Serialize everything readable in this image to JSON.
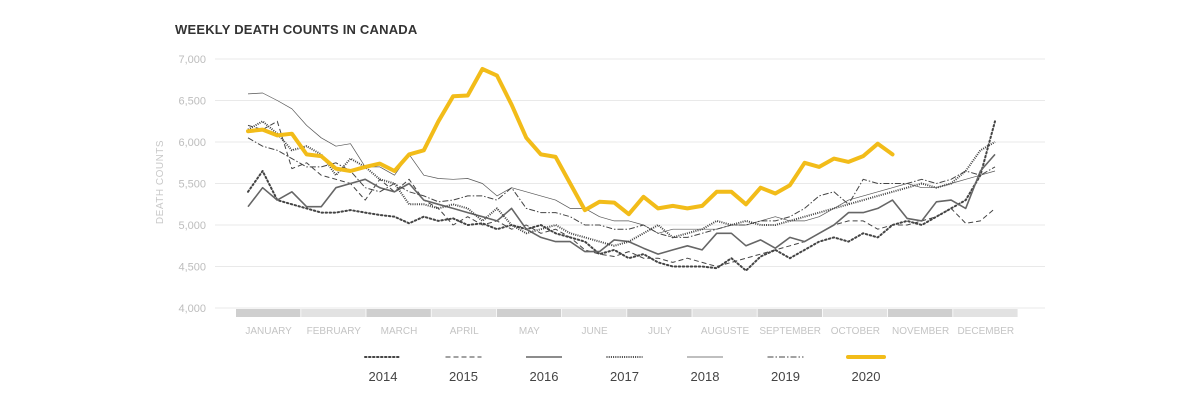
{
  "chart_data": {
    "type": "line",
    "title": "WEEKLY DEATH COUNTS IN CANADA",
    "ylabel": "DEATH COUNTS",
    "xlabel": "",
    "ylim": [
      4000,
      7000
    ],
    "yticks": [
      "4,000",
      "4,500",
      "5,000",
      "5,500",
      "6,000",
      "6,500",
      "7,000"
    ],
    "ytick_values": [
      4000,
      4500,
      5000,
      5500,
      6000,
      6500,
      7000
    ],
    "months": [
      "JANUARY",
      "FEBRUARY",
      "MARCH",
      "APRIL",
      "MAY",
      "JUNE",
      "JULY",
      "AUGUSTE",
      "SEPTEMBER",
      "OCTOBER",
      "NOVEMBER",
      "DECEMBER"
    ],
    "weeks": 52,
    "grid": true,
    "legend_position": "bottom",
    "series": [
      {
        "name": "2014",
        "style": "dotted",
        "color": "#444444",
        "values": [
          5400,
          5650,
          5300,
          5250,
          5200,
          5150,
          5150,
          5180,
          5150,
          5120,
          5100,
          5020,
          5100,
          5050,
          5080,
          5000,
          5020,
          4950,
          5000,
          4950,
          5000,
          4900,
          4850,
          4800,
          4650,
          4700,
          4600,
          4650,
          4550,
          4500,
          4500,
          4500,
          4480,
          4600,
          4450,
          4620,
          4700,
          4600,
          4700,
          4800,
          4850,
          4800,
          4900,
          4850,
          5000,
          5050,
          5000,
          5100,
          5200,
          5300,
          5600,
          6250
        ]
      },
      {
        "name": "2015",
        "style": "dashed",
        "color": "#444444",
        "values": [
          6200,
          6150,
          6250,
          5680,
          5750,
          5600,
          5550,
          5500,
          5300,
          5550,
          5400,
          5550,
          5300,
          5200,
          5000,
          5100,
          5000,
          5050,
          4950,
          5000,
          4900,
          4950,
          4850,
          4700,
          4650,
          4620,
          4680,
          4600,
          4600,
          4550,
          4600,
          4550,
          4500,
          4550,
          4600,
          4650,
          4700,
          4750,
          4800,
          4900,
          5000,
          5050,
          5050,
          4950,
          5000,
          5000,
          5050,
          5100,
          5200,
          5020,
          5050,
          5200
        ]
      },
      {
        "name": "2016",
        "style": "solid-thick",
        "color": "#666666",
        "values": [
          5220,
          5450,
          5300,
          5400,
          5220,
          5220,
          5450,
          5500,
          5550,
          5450,
          5400,
          5500,
          5300,
          5250,
          5200,
          5150,
          5100,
          5050,
          5200,
          4950,
          4850,
          4800,
          4800,
          4680,
          4680,
          4820,
          4800,
          4720,
          4650,
          4700,
          4750,
          4700,
          4900,
          4900,
          4750,
          4820,
          4720,
          4850,
          4800,
          4900,
          5000,
          5150,
          5150,
          5200,
          5300,
          5080,
          5050,
          5280,
          5300,
          5200,
          5650,
          5850
        ]
      },
      {
        "name": "2017",
        "style": "dense-dotted",
        "color": "#444444",
        "values": [
          6150,
          6250,
          6100,
          5900,
          5950,
          5850,
          5600,
          5800,
          5700,
          5550,
          5500,
          5250,
          5250,
          5200,
          5250,
          5200,
          5050,
          5200,
          5000,
          4900,
          4950,
          5000,
          4900,
          4850,
          4800,
          4750,
          4800,
          4900,
          5000,
          4850,
          4900,
          4950,
          5050,
          5000,
          5050,
          5000,
          5000,
          5050,
          5100,
          5150,
          5200,
          5250,
          5300,
          5350,
          5400,
          5450,
          5500,
          5450,
          5500,
          5650,
          5900,
          6000
        ]
      },
      {
        "name": "2018",
        "style": "solid-thin",
        "color": "#555555",
        "values": [
          6580,
          6590,
          6500,
          6400,
          6200,
          6050,
          5950,
          5980,
          5700,
          5700,
          5600,
          5850,
          5600,
          5560,
          5550,
          5560,
          5500,
          5350,
          5450,
          5400,
          5350,
          5300,
          5200,
          5200,
          5100,
          5050,
          5050,
          5000,
          4900,
          4950,
          4950,
          4950,
          4950,
          5000,
          5000,
          5050,
          5100,
          5050,
          5050,
          5100,
          5200,
          5300,
          5350,
          5400,
          5450,
          5500,
          5450,
          5450,
          5500,
          5550,
          5600,
          5650
        ]
      },
      {
        "name": "2019",
        "style": "dash-dot",
        "color": "#444444",
        "values": [
          6050,
          5950,
          5900,
          5800,
          5700,
          5700,
          5750,
          5650,
          5450,
          5400,
          5500,
          5400,
          5350,
          5280,
          5300,
          5350,
          5350,
          5300,
          5450,
          5200,
          5150,
          5150,
          5100,
          5000,
          5000,
          4950,
          4950,
          5000,
          4900,
          4850,
          4850,
          4900,
          4950,
          5000,
          5000,
          5050,
          5050,
          5100,
          5200,
          5350,
          5400,
          5250,
          5550,
          5500,
          5500,
          5500,
          5550,
          5500,
          5550,
          5650,
          5600,
          5700
        ]
      },
      {
        "name": "2020",
        "style": "highlight",
        "color": "#f2bc19",
        "values": [
          6130,
          6150,
          6080,
          6100,
          5850,
          5830,
          5680,
          5650,
          5700,
          5740,
          5650,
          5850,
          5900,
          6250,
          6550,
          6560,
          6880,
          6800,
          6450,
          6050,
          5850,
          5820,
          5500,
          5180,
          5280,
          5270,
          5130,
          5340,
          5200,
          5230,
          5200,
          5230,
          5400,
          5400,
          5250,
          5450,
          5380,
          5480,
          5750,
          5700,
          5800,
          5760,
          5830,
          5980,
          5850
        ]
      }
    ]
  }
}
